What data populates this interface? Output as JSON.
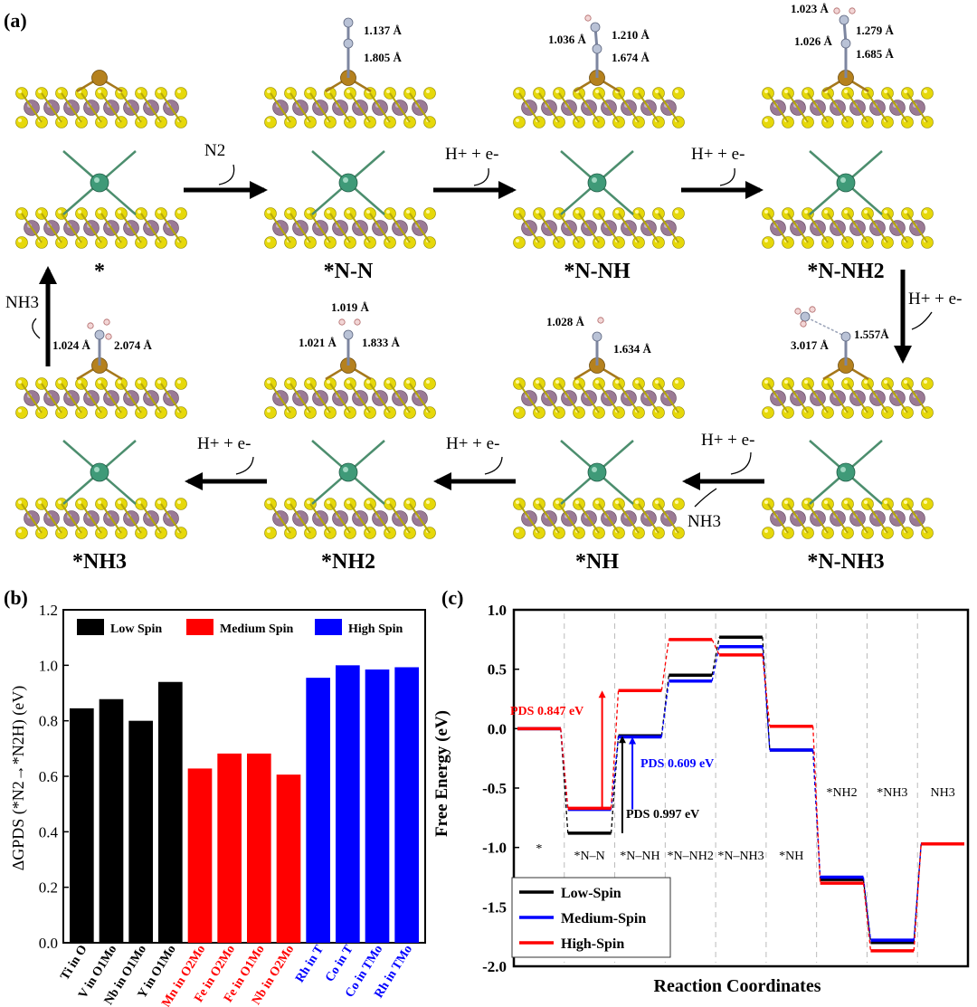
{
  "panel_a": {
    "label": "(a)",
    "states_top": [
      "*",
      "*N-N",
      "*N-NH",
      "*N-NH2"
    ],
    "states_bottom": [
      "*NH3",
      "*NH2",
      "*NH",
      "*N-NH3"
    ],
    "arrow_labels": {
      "n2": "N2",
      "step": "H+ + e-",
      "nh3_out": "NH3"
    },
    "bond_labels": {
      "nn_top": "1.137 Å",
      "nn_bottom": "1.805 Å",
      "nnh_nh": "1.036 Å",
      "nnh_top": "1.210 Å",
      "nnh_bottom": "1.674 Å",
      "nnh2_nh": "1.023 Å",
      "nnh2_nh2": "1.026 Å",
      "nnh2_top": "1.279 Å",
      "nnh2_bottom": "1.685 Å",
      "nnh3_far": "3.017 Å",
      "nnh3_bottom": "1.557Å",
      "nh_nh": "1.028 Å",
      "nh_bottom": "1.634 Å",
      "nh2_top": "1.019 Å",
      "nh2_nh": "1.021 Å",
      "nh2_bottom": "1.833 Å",
      "nh3_nh": "1.024 Å",
      "nh3_bottom": "2.074 Å"
    }
  },
  "panel_b": {
    "label": "(b)",
    "chart_data": {
      "type": "bar",
      "ylabel": "ΔGPDS (*N2→*N2H) (eV)",
      "ylim": [
        0.0,
        1.2
      ],
      "yticks": [
        "0.0",
        "0.2",
        "0.4",
        "0.6",
        "0.8",
        "1.0",
        "1.2"
      ],
      "legend": [
        "Low Spin",
        "Medium Spin",
        "High Spin"
      ],
      "categories": [
        "Ti in O",
        "V in O1Mo",
        "Nb in O1Mo",
        "Y in O1Mo",
        "Mn in O2Mo",
        "Fe in O2Mo",
        "Fe in O1Mo",
        "Nb in O2Mo",
        "Rh in T",
        "Co in T",
        "Co in TMo",
        "Rh in TMo"
      ],
      "values": [
        0.845,
        0.878,
        0.8,
        0.94,
        0.628,
        0.682,
        0.682,
        0.606,
        0.955,
        1.0,
        0.985,
        0.993
      ],
      "groups": [
        "Low Spin",
        "Low Spin",
        "Low Spin",
        "Low Spin",
        "Medium Spin",
        "Medium Spin",
        "Medium Spin",
        "Medium Spin",
        "High Spin",
        "High Spin",
        "High Spin",
        "High Spin"
      ],
      "colors": {
        "Low Spin": "#000000",
        "Medium Spin": "#ff0000",
        "High Spin": "#0000ff"
      }
    }
  },
  "panel_c": {
    "label": "(c)",
    "chart_data": {
      "type": "line",
      "xlabel": "Reaction Coordinates",
      "ylabel": "Free Energy (eV)",
      "ylim": [
        -2.0,
        1.0
      ],
      "yticks": [
        "-2.0",
        "-1.5",
        "-1.0",
        "-0.5",
        "0.0",
        "0.5",
        "1.0"
      ],
      "states": [
        "*",
        "*N–N",
        "*N–NH",
        "*N–NH2",
        "*N–NH3",
        "*NH",
        "*NH2",
        "*NH3",
        "NH3"
      ],
      "series": [
        {
          "name": "Low-Spin",
          "color": "#000000",
          "values": [
            0.0,
            -0.88,
            -0.06,
            0.45,
            0.77,
            -0.18,
            -1.27,
            -1.8,
            -0.97
          ]
        },
        {
          "name": "Medium-Spin",
          "color": "#0000ff",
          "values": [
            0.0,
            -0.68,
            -0.07,
            0.4,
            0.69,
            -0.18,
            -1.25,
            -1.78,
            -0.97
          ]
        },
        {
          "name": "High-Spin",
          "color": "#ff0000",
          "values": [
            0.0,
            -0.67,
            0.32,
            0.75,
            0.62,
            0.02,
            -1.3,
            -1.87,
            -0.97
          ]
        }
      ],
      "annotations": [
        "PDS 0.847 eV",
        "PDS 0.609 eV",
        "PDS 0.997 eV"
      ]
    }
  }
}
